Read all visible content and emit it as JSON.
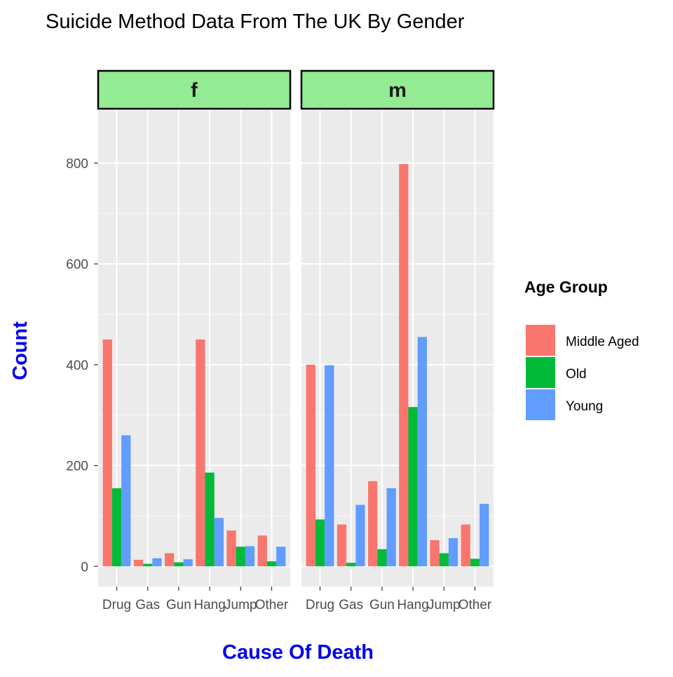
{
  "chart_data": {
    "type": "bar",
    "title": "Suicide Method Data From The UK By Gender",
    "xlabel": "Cause Of Death",
    "ylabel": "Count",
    "ylim": [
      -40,
      905
    ],
    "yticks": [
      0,
      200,
      400,
      600,
      800
    ],
    "categories": [
      "Drug",
      "Gas",
      "Gun",
      "Hang",
      "Jump",
      "Other"
    ],
    "legend": {
      "title": "Age Group",
      "position": "right",
      "entries": [
        "Middle Aged",
        "Old",
        "Young"
      ]
    },
    "colors": {
      "Middle Aged": "#F8766D",
      "Old": "#00BA38",
      "Young": "#619CFF",
      "panel": "#EBEBEB",
      "strip": "#93EB93",
      "title_blue": "#0000EE"
    },
    "grid": true,
    "facets": [
      {
        "label": "f",
        "series": [
          {
            "name": "Middle Aged",
            "values": [
              450,
              13,
              26,
              450,
              71,
              61
            ]
          },
          {
            "name": "Old",
            "values": [
              155,
              5,
              8,
              186,
              39,
              10
            ]
          },
          {
            "name": "Young",
            "values": [
              260,
              16,
              14,
              96,
              40,
              39
            ]
          }
        ]
      },
      {
        "label": "m",
        "series": [
          {
            "name": "Middle Aged",
            "values": [
              400,
              83,
              169,
              798,
              52,
              83
            ]
          },
          {
            "name": "Old",
            "values": [
              93,
              7,
              34,
              316,
              26,
              15
            ]
          },
          {
            "name": "Young",
            "values": [
              399,
              122,
              155,
              455,
              56,
              124
            ]
          }
        ]
      }
    ]
  }
}
